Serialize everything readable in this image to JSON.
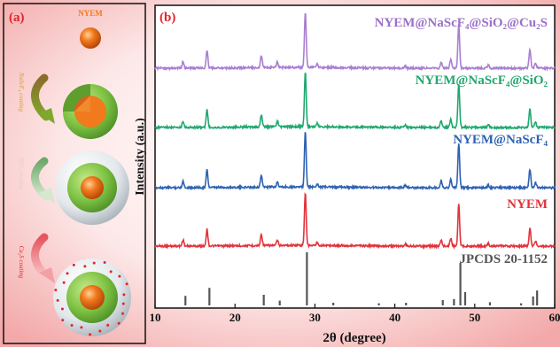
{
  "panel_a": {
    "letter": "(a)",
    "nyem_label": "NYEM",
    "steps": [
      {
        "name": "nascf4",
        "label": "NaScF₄ coating"
      },
      {
        "name": "sio2",
        "label": "SiO₂ coating"
      },
      {
        "name": "cu2s",
        "label": "Cu₂S coating"
      }
    ],
    "colors": {
      "core": "#f07a1c",
      "nascf4_layer": "#7cc142",
      "sio2_layer": "#e9eef2",
      "cu2s_dots": "#e0262a",
      "arrow1": "#6b8e23",
      "arrow2": "#8fbf80",
      "arrow3": "#e06a70"
    }
  },
  "chart_data": {
    "type": "line",
    "panel_letter": "(b)",
    "xlabel": "2θ (degree)",
    "ylabel": "Intensity (a.u.)",
    "xlim": [
      10,
      60
    ],
    "x_ticks": [
      10,
      20,
      30,
      40,
      50,
      60
    ],
    "legend_placement": "labels above each curve, right side",
    "reference": {
      "name": "JPCDS 20-1152",
      "color": "#555555",
      "sticks": [
        {
          "x": 13.8,
          "h": 0.18
        },
        {
          "x": 16.8,
          "h": 0.33
        },
        {
          "x": 23.6,
          "h": 0.2
        },
        {
          "x": 25.6,
          "h": 0.09
        },
        {
          "x": 29.0,
          "h": 1.0
        },
        {
          "x": 32.3,
          "h": 0.05
        },
        {
          "x": 38.0,
          "h": 0.04
        },
        {
          "x": 41.4,
          "h": 0.05
        },
        {
          "x": 46.0,
          "h": 0.1
        },
        {
          "x": 47.4,
          "h": 0.12
        },
        {
          "x": 48.2,
          "h": 0.8
        },
        {
          "x": 48.8,
          "h": 0.25
        },
        {
          "x": 51.9,
          "h": 0.06
        },
        {
          "x": 55.8,
          "h": 0.04
        },
        {
          "x": 57.3,
          "h": 0.17
        },
        {
          "x": 57.8,
          "h": 0.28
        }
      ]
    },
    "peaks": [
      {
        "x": 13.5,
        "h": 0.12
      },
      {
        "x": 16.5,
        "h": 0.32
      },
      {
        "x": 23.3,
        "h": 0.22
      },
      {
        "x": 25.3,
        "h": 0.1
      },
      {
        "x": 28.8,
        "h": 1.0
      },
      {
        "x": 30.3,
        "h": 0.06
      },
      {
        "x": 41.3,
        "h": 0.04
      },
      {
        "x": 45.8,
        "h": 0.12
      },
      {
        "x": 47.0,
        "h": 0.15
      },
      {
        "x": 48.0,
        "h": 0.8
      },
      {
        "x": 51.7,
        "h": 0.05
      },
      {
        "x": 56.9,
        "h": 0.34
      },
      {
        "x": 57.6,
        "h": 0.1
      }
    ],
    "series": [
      {
        "name": "NYEM",
        "color": "#e2333b",
        "label_color": "#e2333b"
      },
      {
        "name": "NYEM@NaScF₄",
        "color": "#2e62b3",
        "label_color": "#2e62b3"
      },
      {
        "name": "NYEM@NaScF₄@SiO₂",
        "color": "#21a870",
        "label_color": "#21a870"
      },
      {
        "name": "NYEM@NaScF₄@SiO₂@Cu₂S",
        "color": "#a97fd1",
        "label_color": "#9b70c9"
      }
    ]
  }
}
